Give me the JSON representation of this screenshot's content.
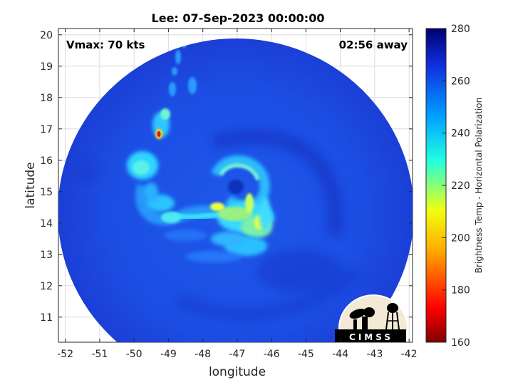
{
  "title": "Lee: 07-Sep-2023 00:00:00",
  "vmax_label": "Vmax: 70 kts",
  "time_label": "02:56 away",
  "xlabel": "longitude",
  "ylabel": "latitude",
  "x_ticks": [
    "-52",
    "-51",
    "-50",
    "-49",
    "-48",
    "-47",
    "-46",
    "-45",
    "-44",
    "-43",
    "-42"
  ],
  "y_ticks": [
    "11",
    "12",
    "13",
    "14",
    "15",
    "16",
    "17",
    "18",
    "19",
    "20"
  ],
  "colorbar": {
    "label": "Brightness Temp - Horizontal Polarization",
    "ticks": [
      "160",
      "180",
      "200",
      "220",
      "240",
      "260",
      "280"
    ],
    "range": [
      160,
      280
    ]
  },
  "logo": {
    "text": "CIMSS"
  },
  "colors": {
    "background_blue": "#1f4fe6",
    "deep_blue": "#1636c8",
    "cyan": "#2ee0ff",
    "yellow": "#e8ff30",
    "red": "#d40000"
  },
  "map": {
    "xlim": [
      -52.2,
      -41.9
    ],
    "ylim": [
      10.2,
      20.2
    ],
    "swath_center": {
      "lon": -47.0,
      "lat": 15.1
    },
    "storm_eye": {
      "lon": -47.0,
      "lat": 15.1
    }
  }
}
